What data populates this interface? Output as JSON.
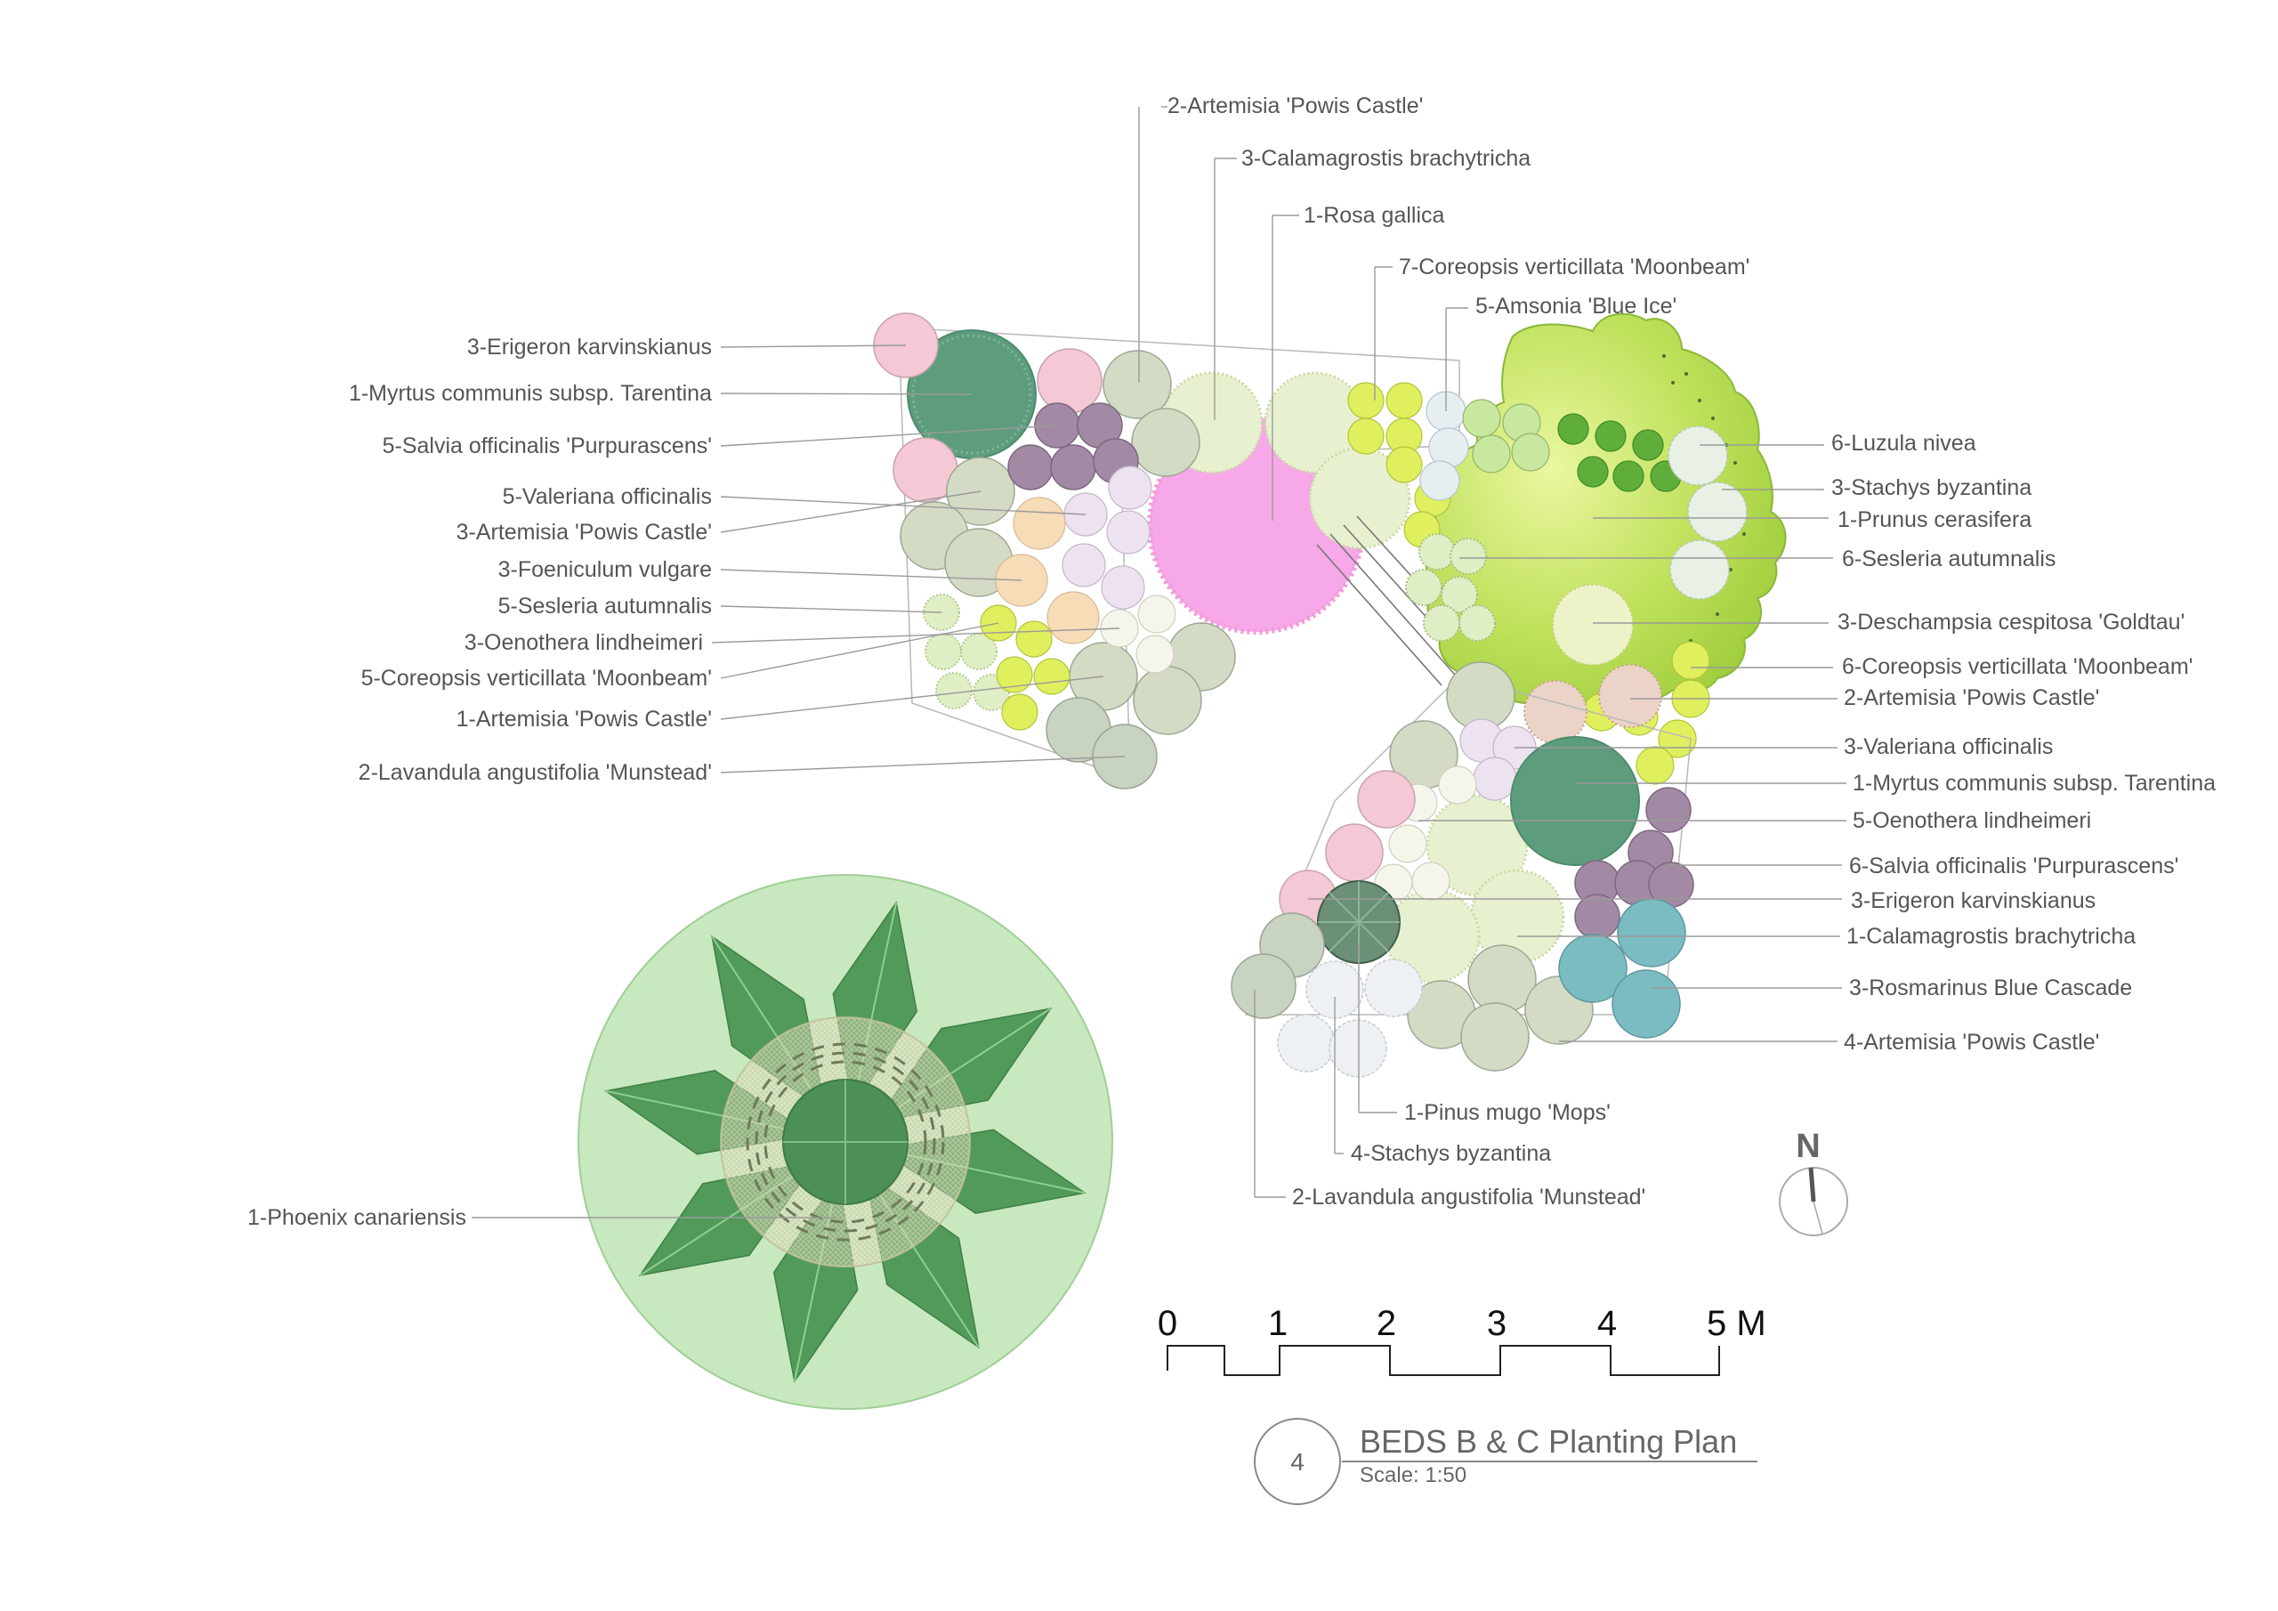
{
  "colors": {
    "myrtus": "#5d9d7e",
    "rosa": "#f7a8e8",
    "prunus": "#b5dc55",
    "erigeron": "#f4c8d4",
    "salvia": "#a38aa4",
    "valeriana": "#ede2f0",
    "artemisia": "#d3dbc4",
    "foeniculum": "#f7dcb8",
    "sesleria": "#dfeec4",
    "oenothera": "#f5f5ec",
    "coreopsis": "#e0ef5e",
    "lavandula": "#c9d3c2",
    "calamagrostis": "#e8f1cf",
    "luzula": "#5fae3c",
    "stachys": "#e9f0e6",
    "deschampsia": "#eef2c8",
    "rosmarinus": "#7bbcc2",
    "pinus": "#6c8f78",
    "amsonia": "#e6eef2",
    "phoenix_canopy": "#c8e8c0",
    "phoenix_leaf": "#529a5a"
  },
  "labels_left": [
    "3-Erigeron karvinskianus",
    "1-Myrtus communis subsp. Tarentina",
    "5-Salvia officinalis 'Purpurascens'",
    "5-Valeriana officinalis",
    "3-Artemisia 'Powis Castle'",
    "3-Foeniculum vulgare",
    "5-Sesleria autumnalis",
    "3-Oenothera lindheimeri",
    "5-Coreopsis verticillata 'Moonbeam'",
    "1-Artemisia 'Powis Castle'",
    "2-Lavandula angustifolia 'Munstead'"
  ],
  "labels_top": [
    "2-Artemisia 'Powis Castle'",
    "3-Calamagrostis brachytricha",
    "1-Rosa gallica",
    "7-Coreopsis verticillata 'Moonbeam'",
    "5-Amsonia 'Blue Ice'"
  ],
  "labels_right": [
    "6-Luzula nivea",
    "3-Stachys byzantina",
    "1-Prunus cerasifera",
    "6-Sesleria autumnalis",
    "3-Deschampsia cespitosa 'Goldtau'",
    "6-Coreopsis verticillata 'Moonbeam'",
    "2-Artemisia 'Powis Castle'",
    "3-Valeriana officinalis",
    "1-Myrtus communis subsp. Tarentina",
    "5-Oenothera lindheimeri",
    "6-Salvia officinalis 'Purpurascens'",
    "3-Erigeron karvinskianus",
    "1-Calamagrostis brachytricha",
    "3-Rosmarinus Blue Cascade",
    "4-Artemisia 'Powis Castle'"
  ],
  "labels_bottom": [
    "1-Pinus mugo 'Mops'",
    "4-Stachys byzantina",
    "2-Lavandula angustifolia 'Munstead'"
  ],
  "label_phoenix": "1-Phoenix canariensis",
  "north": "N",
  "scale_bar": {
    "ticks": [
      "0",
      "1",
      "2",
      "3",
      "4",
      "5 M"
    ]
  },
  "title": {
    "number": "4",
    "text": "BEDS B & C Planting Plan",
    "scale": "Scale: 1:50"
  }
}
